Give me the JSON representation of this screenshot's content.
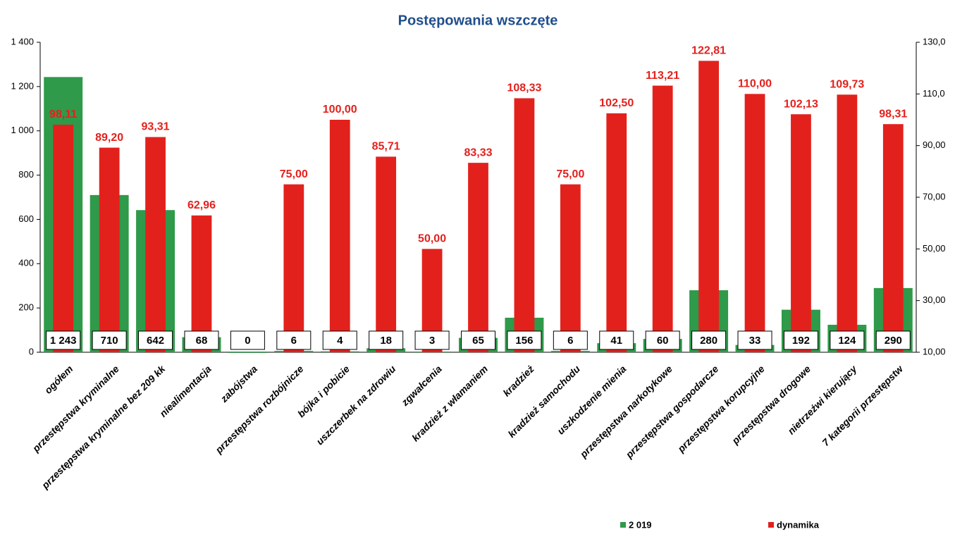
{
  "chart_data": {
    "type": "bar",
    "title": "Postępowania wszczęte",
    "categories": [
      "ogółem",
      "przestępstwa kryminalne",
      "przestępstwa kryminalne bez 209 kk",
      "niealimentacja",
      "zabójstwa",
      "przestępstwa rozbójnicze",
      "bójka i pobicie",
      "uszczerbek na zdrowiu",
      "zgwałcenia",
      "kradzież z włamaniem",
      "kradzież",
      "kradzież samochodu",
      "uszkodzenie mienia",
      "przestępstwa narkotykowe",
      "przestępstwa gospodarcze",
      "przestępstwa korupcyjne",
      "przestępstwa drogowe",
      "nietrzeźwi kierujący",
      "7 kategorii przestępstw"
    ],
    "series": [
      {
        "name": "2 019",
        "color": "#2e9a4a",
        "axis": "y",
        "values": [
          1243,
          710,
          642,
          68,
          0,
          6,
          4,
          18,
          3,
          65,
          156,
          6,
          41,
          60,
          280,
          33,
          192,
          124,
          290
        ],
        "value_labels": [
          "1 243",
          "710",
          "642",
          "68",
          "0",
          "6",
          "4",
          "18",
          "3",
          "65",
          "156",
          "6",
          "41",
          "60",
          "280",
          "33",
          "192",
          "124",
          "290"
        ]
      },
      {
        "name": "dynamika",
        "color": "#e3211c",
        "axis": "y2",
        "values": [
          98.11,
          89.2,
          93.31,
          62.96,
          null,
          75,
          100,
          85.71,
          50,
          83.33,
          108.33,
          75,
          102.5,
          113.21,
          122.81,
          110,
          102.13,
          109.73,
          98.31
        ],
        "value_labels": [
          "98,11",
          "89,20",
          "93,31",
          "62,96",
          null,
          "75,00",
          "100,00",
          "85,71",
          "50,00",
          "83,33",
          "108,33",
          "75,00",
          "102,50",
          "113,21",
          "122,81",
          "110,00",
          "102,13",
          "109,73",
          "98,31"
        ]
      }
    ],
    "ylim": [
      0,
      1400
    ],
    "yticks": [
      0,
      200,
      400,
      600,
      800,
      {
        "value": 1000,
        "label": "1 000"
      },
      {
        "value": 1200,
        "label": "1 200"
      },
      {
        "value": 1400,
        "label": "1 400"
      }
    ],
    "y2lim": [
      10,
      130
    ],
    "y2ticks": [
      {
        "value": 10,
        "label": "10,00"
      },
      {
        "value": 30,
        "label": "30,00"
      },
      {
        "value": 50,
        "label": "50,00"
      },
      {
        "value": 70,
        "label": "70,00"
      },
      {
        "value": 90,
        "label": "90,00"
      },
      {
        "value": 110,
        "label": "110,0"
      },
      {
        "value": 130,
        "label": "130,0"
      }
    ],
    "legend": "bottom-right"
  }
}
